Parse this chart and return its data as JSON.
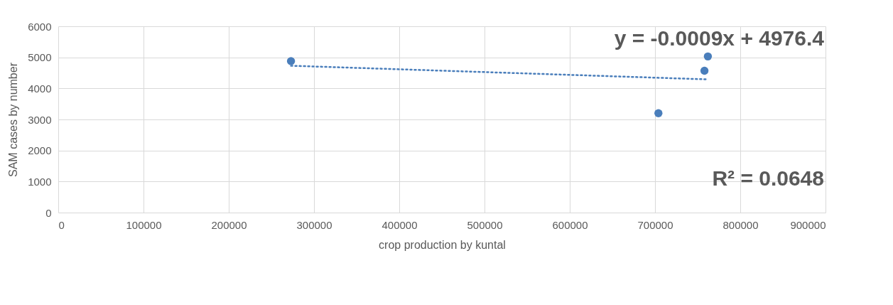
{
  "chart_data": {
    "type": "scatter",
    "xlabel": "crop production by kuntal",
    "ylabel": "SAM cases by number",
    "series": [
      {
        "color": "#4a7ebb",
        "x": [
          273000,
          704000,
          758000,
          762000
        ],
        "values": [
          4880,
          3200,
          4570,
          5030
        ],
        "marker": "circle"
      },
      {
        "type": "line",
        "color": "#4a7ebb",
        "x": [
          273000,
          762000
        ],
        "values": [
          4730,
          4290
        ],
        "line_style": "dotted"
      }
    ],
    "annotations": [
      "y = -0.0009x + 4976.4",
      "R² = 0.0648"
    ],
    "xlim": [
      0,
      900000
    ],
    "xticks": [
      0,
      100000,
      200000,
      300000,
      400000,
      500000,
      600000,
      700000,
      800000,
      900000
    ],
    "ylim": [
      0,
      6000
    ],
    "yticks": [
      0,
      1000,
      2000,
      3000,
      4000,
      5000,
      6000
    ],
    "grid": true
  }
}
